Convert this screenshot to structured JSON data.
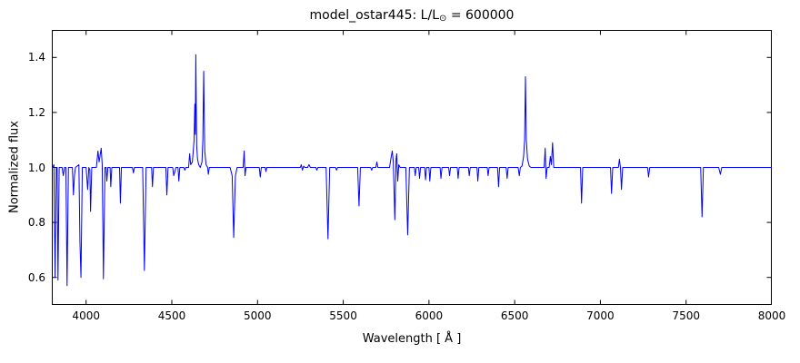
{
  "figure": {
    "title_prefix": "model_ostar445: L/L",
    "title_sub": "⊙",
    "title_suffix": " = 600000",
    "xlabel": "Wavelength [ Å ]",
    "ylabel": "Normalized flux"
  },
  "chart_data": {
    "type": "line",
    "title": "model_ostar445: L/L⊙ = 600000",
    "xlabel": "Wavelength [ Å ]",
    "ylabel": "Normalized flux",
    "xlim": [
      3800,
      8000
    ],
    "ylim": [
      0.5,
      1.5
    ],
    "x_tick_values": [
      4000,
      4500,
      5000,
      5500,
      6000,
      6500,
      7000,
      7500,
      8000
    ],
    "x_tick_labels": [
      "4000",
      "4500",
      "5000",
      "5500",
      "6000",
      "6500",
      "7000",
      "7500",
      "8000"
    ],
    "y_tick_values": [
      0.6,
      0.8,
      1.0,
      1.2,
      1.4
    ],
    "y_tick_labels": [
      "0.6",
      "0.8",
      "1.0",
      "1.2",
      "1.4"
    ],
    "grid": false,
    "legend": null,
    "line_color": "#0000ff",
    "background": "#ffffff",
    "series": [
      {
        "name": "normalized-flux-spectrum",
        "points": [
          [
            3800,
            1.0
          ],
          [
            3806,
            1.0
          ],
          [
            3812,
            1.01
          ],
          [
            3819,
            0.6
          ],
          [
            3826,
            1.0
          ],
          [
            3831,
            1.0
          ],
          [
            3836,
            0.59
          ],
          [
            3843,
            1.0
          ],
          [
            3860,
            1.0
          ],
          [
            3867,
            0.97
          ],
          [
            3874,
            1.0
          ],
          [
            3882,
            1.0
          ],
          [
            3889,
            0.57
          ],
          [
            3897,
            1.0
          ],
          [
            3920,
            1.0
          ],
          [
            3926,
            0.9
          ],
          [
            3932,
            0.97
          ],
          [
            3938,
            1.0
          ],
          [
            3958,
            1.01
          ],
          [
            3964,
            0.73
          ],
          [
            3970,
            0.6
          ],
          [
            3978,
            1.0
          ],
          [
            4000,
            1.0
          ],
          [
            4009,
            0.92
          ],
          [
            4016,
            1.0
          ],
          [
            4022,
            0.99
          ],
          [
            4026,
            0.84
          ],
          [
            4033,
            1.0
          ],
          [
            4060,
            1.0
          ],
          [
            4069,
            1.06
          ],
          [
            4076,
            1.02
          ],
          [
            4088,
            1.07
          ],
          [
            4094,
            1.01
          ],
          [
            4101,
            0.595
          ],
          [
            4110,
            1.0
          ],
          [
            4117,
            1.0
          ],
          [
            4121,
            0.95
          ],
          [
            4127,
            1.0
          ],
          [
            4140,
            1.0
          ],
          [
            4144,
            0.93
          ],
          [
            4150,
            1.0
          ],
          [
            4195,
            1.0
          ],
          [
            4200,
            0.87
          ],
          [
            4206,
            1.0
          ],
          [
            4270,
            1.0
          ],
          [
            4276,
            0.98
          ],
          [
            4282,
            1.0
          ],
          [
            4330,
            1.0
          ],
          [
            4340,
            0.625
          ],
          [
            4350,
            1.0
          ],
          [
            4382,
            1.0
          ],
          [
            4387,
            0.93
          ],
          [
            4393,
            1.0
          ],
          [
            4465,
            1.0
          ],
          [
            4471,
            0.9
          ],
          [
            4478,
            1.0
          ],
          [
            4505,
            1.0
          ],
          [
            4511,
            0.97
          ],
          [
            4518,
            0.985
          ],
          [
            4524,
            1.0
          ],
          [
            4536,
            1.0
          ],
          [
            4541,
            0.95
          ],
          [
            4547,
            1.0
          ],
          [
            4570,
            1.0
          ],
          [
            4576,
            0.99
          ],
          [
            4582,
            1.0
          ],
          [
            4598,
            1.0
          ],
          [
            4604,
            1.05
          ],
          [
            4610,
            1.01
          ],
          [
            4620,
            1.02
          ],
          [
            4625,
            1.06
          ],
          [
            4630,
            1.1
          ],
          [
            4634,
            1.23
          ],
          [
            4637,
            1.12
          ],
          [
            4640,
            1.41
          ],
          [
            4645,
            1.08
          ],
          [
            4650,
            1.03
          ],
          [
            4657,
            1.01
          ],
          [
            4666,
            1.0
          ],
          [
            4676,
            1.02
          ],
          [
            4681,
            1.1
          ],
          [
            4686,
            1.35
          ],
          [
            4692,
            1.06
          ],
          [
            4700,
            1.01
          ],
          [
            4709,
            1.0
          ],
          [
            4713,
            0.975
          ],
          [
            4719,
            1.0
          ],
          [
            4840,
            1.0
          ],
          [
            4852,
            0.97
          ],
          [
            4861,
            0.745
          ],
          [
            4871,
            0.97
          ],
          [
            4881,
            1.0
          ],
          [
            4916,
            1.0
          ],
          [
            4922,
            1.06
          ],
          [
            4927,
            0.97
          ],
          [
            4933,
            1.0
          ],
          [
            5010,
            1.0
          ],
          [
            5016,
            0.965
          ],
          [
            5022,
            1.0
          ],
          [
            5045,
            1.0
          ],
          [
            5049,
            0.985
          ],
          [
            5054,
            1.0
          ],
          [
            5250,
            1.0
          ],
          [
            5255,
            1.01
          ],
          [
            5262,
            0.99
          ],
          [
            5269,
            1.005
          ],
          [
            5276,
            1.0
          ],
          [
            5292,
            1.0
          ],
          [
            5300,
            1.01
          ],
          [
            5308,
            1.0
          ],
          [
            5340,
            1.0
          ],
          [
            5346,
            0.99
          ],
          [
            5352,
            1.0
          ],
          [
            5400,
            1.0
          ],
          [
            5411,
            0.74
          ],
          [
            5421,
            1.0
          ],
          [
            5455,
            1.0
          ],
          [
            5461,
            0.99
          ],
          [
            5467,
            1.0
          ],
          [
            5584,
            1.0
          ],
          [
            5592,
            0.86
          ],
          [
            5600,
            1.0
          ],
          [
            5660,
            1.0
          ],
          [
            5666,
            0.99
          ],
          [
            5672,
            1.0
          ],
          [
            5690,
            1.0
          ],
          [
            5696,
            1.02
          ],
          [
            5702,
            1.0
          ],
          [
            5770,
            1.0
          ],
          [
            5780,
            1.04
          ],
          [
            5786,
            1.06
          ],
          [
            5792,
            1.02
          ],
          [
            5801,
            0.81
          ],
          [
            5808,
            1.03
          ],
          [
            5812,
            1.05
          ],
          [
            5818,
            0.95
          ],
          [
            5824,
            1.01
          ],
          [
            5832,
            1.0
          ],
          [
            5865,
            1.0
          ],
          [
            5876,
            0.755
          ],
          [
            5886,
            1.0
          ],
          [
            5915,
            1.0
          ],
          [
            5920,
            0.97
          ],
          [
            5926,
            1.0
          ],
          [
            5940,
            1.0
          ],
          [
            5945,
            0.96
          ],
          [
            5951,
            1.0
          ],
          [
            5975,
            1.0
          ],
          [
            5980,
            0.955
          ],
          [
            5986,
            1.0
          ],
          [
            6000,
            1.0
          ],
          [
            6005,
            0.95
          ],
          [
            6011,
            1.0
          ],
          [
            6065,
            1.0
          ],
          [
            6070,
            0.96
          ],
          [
            6076,
            1.0
          ],
          [
            6115,
            1.0
          ],
          [
            6120,
            0.97
          ],
          [
            6126,
            1.0
          ],
          [
            6165,
            1.0
          ],
          [
            6170,
            0.96
          ],
          [
            6176,
            1.0
          ],
          [
            6230,
            1.0
          ],
          [
            6235,
            0.97
          ],
          [
            6241,
            1.0
          ],
          [
            6280,
            1.0
          ],
          [
            6285,
            0.95
          ],
          [
            6291,
            1.0
          ],
          [
            6340,
            1.0
          ],
          [
            6345,
            0.97
          ],
          [
            6351,
            1.0
          ],
          [
            6400,
            1.0
          ],
          [
            6406,
            0.93
          ],
          [
            6412,
            1.0
          ],
          [
            6450,
            1.0
          ],
          [
            6456,
            0.96
          ],
          [
            6462,
            1.0
          ],
          [
            6520,
            1.0
          ],
          [
            6527,
            0.97
          ],
          [
            6533,
            1.0
          ],
          [
            6543,
            1.005
          ],
          [
            6552,
            1.04
          ],
          [
            6558,
            1.1
          ],
          [
            6563,
            1.33
          ],
          [
            6568,
            1.1
          ],
          [
            6575,
            1.03
          ],
          [
            6585,
            1.005
          ],
          [
            6595,
            1.0
          ],
          [
            6672,
            1.0
          ],
          [
            6678,
            1.07
          ],
          [
            6683,
            0.96
          ],
          [
            6690,
            1.0
          ],
          [
            6701,
            1.0
          ],
          [
            6708,
            1.04
          ],
          [
            6714,
            1.01
          ],
          [
            6721,
            1.09
          ],
          [
            6728,
            1.0
          ],
          [
            6884,
            1.0
          ],
          [
            6890,
            0.87
          ],
          [
            6897,
            1.0
          ],
          [
            7059,
            1.0
          ],
          [
            7065,
            0.905
          ],
          [
            7072,
            1.0
          ],
          [
            7105,
            1.0
          ],
          [
            7111,
            1.03
          ],
          [
            7117,
            1.0
          ],
          [
            7123,
            0.92
          ],
          [
            7130,
            1.0
          ],
          [
            7275,
            1.0
          ],
          [
            7281,
            0.965
          ],
          [
            7288,
            1.0
          ],
          [
            7585,
            1.0
          ],
          [
            7593,
            0.82
          ],
          [
            7601,
            1.0
          ],
          [
            7690,
            1.0
          ],
          [
            7700,
            0.975
          ],
          [
            7708,
            1.0
          ],
          [
            8000,
            1.0
          ]
        ]
      }
    ]
  }
}
